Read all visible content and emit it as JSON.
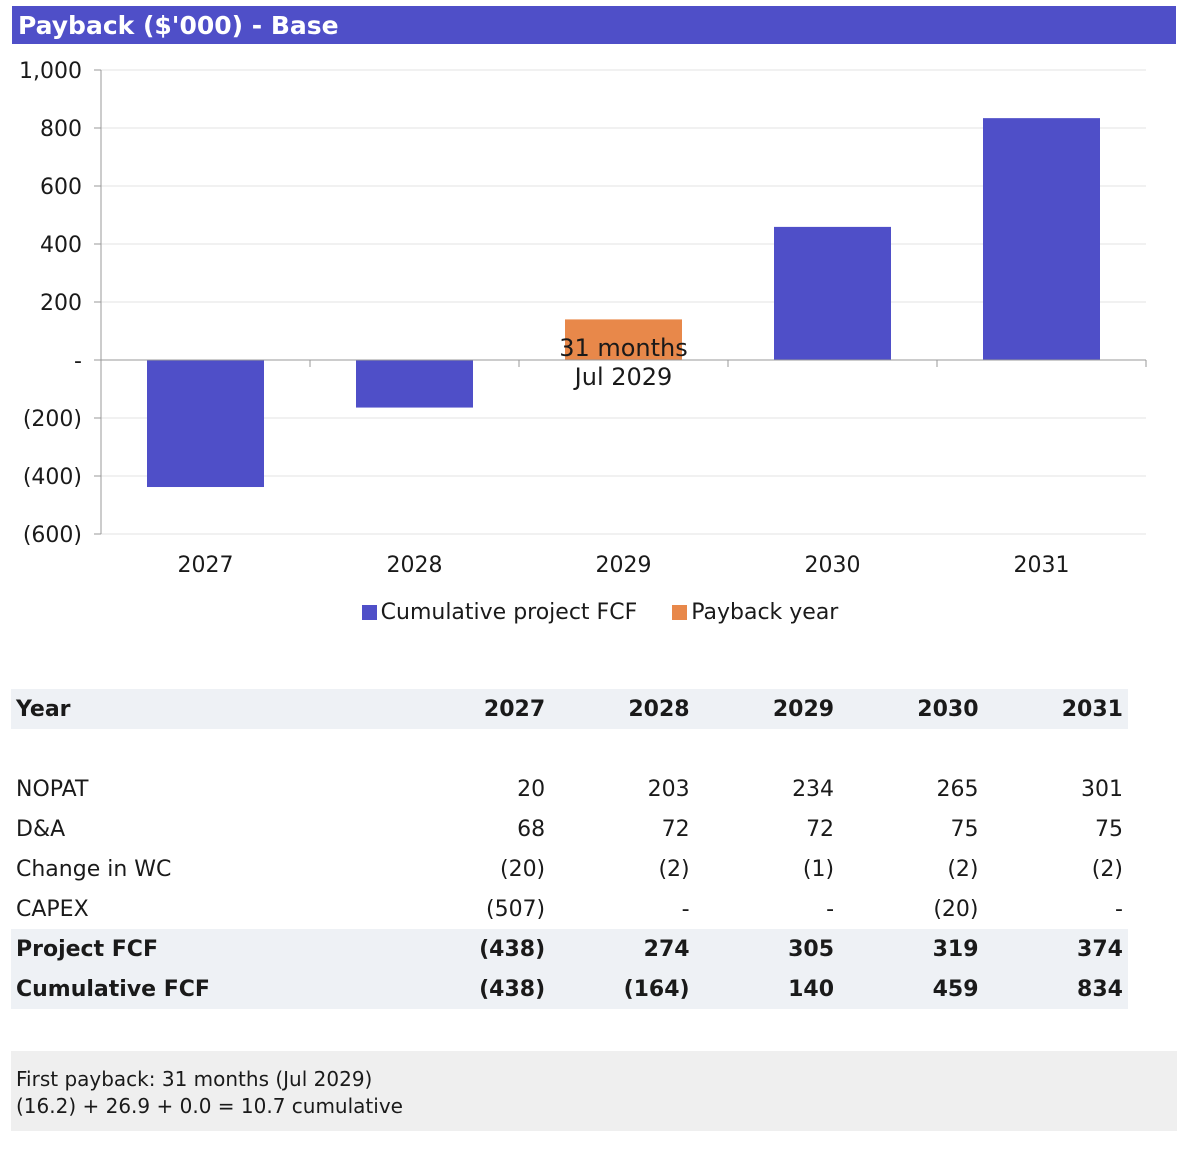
{
  "title": "Payback ($'000) - Base",
  "chart_data": {
    "type": "bar",
    "categories": [
      "2027",
      "2028",
      "2029",
      "2030",
      "2031"
    ],
    "series": [
      {
        "name": "Cumulative project FCF",
        "color": "#4f4fc8",
        "values": [
          -438,
          -164,
          null,
          459,
          834
        ]
      },
      {
        "name": "Payback year",
        "color": "#e8884a",
        "values": [
          null,
          null,
          140,
          null,
          null
        ]
      }
    ],
    "yticks": [
      1000,
      800,
      600,
      400,
      200,
      0,
      -200,
      -400,
      -600
    ],
    "ytick_labels": [
      "1,000",
      "800",
      "600",
      "400",
      "200",
      "-",
      "(200)",
      "(400)",
      "(600)"
    ],
    "ylim": [
      -600,
      1000
    ],
    "grid": true,
    "legend": "bottom",
    "annotations": [
      {
        "category": "2029",
        "lines": [
          "31 months",
          "Jul 2029"
        ]
      }
    ]
  },
  "table": {
    "header": {
      "label": "Year",
      "values": [
        "2027",
        "2028",
        "2029",
        "2030",
        "2031"
      ]
    },
    "rows": [
      {
        "label": "NOPAT",
        "values": [
          "20",
          "203",
          "234",
          "265",
          "301"
        ]
      },
      {
        "label": "D&A",
        "values": [
          "68",
          "72",
          "72",
          "75",
          "75"
        ]
      },
      {
        "label": "Change in WC",
        "values": [
          "(20)",
          "(2)",
          "(1)",
          "(2)",
          "(2)"
        ]
      },
      {
        "label": "CAPEX",
        "values": [
          "(507)",
          "-",
          "-",
          "(20)",
          "-"
        ]
      },
      {
        "label": "Project FCF",
        "values": [
          "(438)",
          "274",
          "305",
          "319",
          "374"
        ]
      },
      {
        "label": "Cumulative FCF",
        "values": [
          "(438)",
          "(164)",
          "140",
          "459",
          "834"
        ]
      }
    ]
  },
  "note": {
    "line1": "First payback: 31 months (Jul 2029)",
    "line2": "(16.2) + 26.9 + 0.0 = 10.7 cumulative"
  }
}
